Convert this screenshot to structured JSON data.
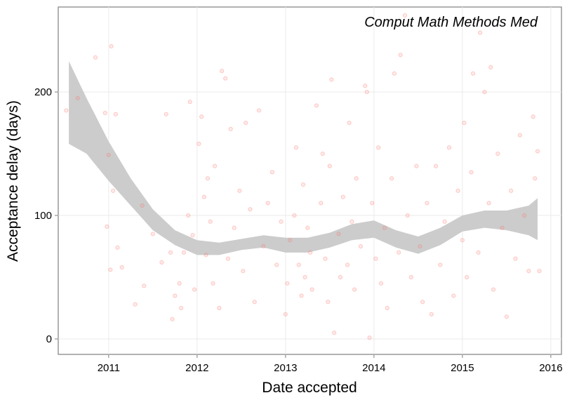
{
  "chart_data": {
    "type": "scatter",
    "annotation": "Comput Math Methods Med",
    "x_label": "Date accepted",
    "y_label": "Acceptance delay (days)",
    "xlim": [
      2010.43,
      2016.12
    ],
    "ylim": [
      -12.5,
      268.8
    ],
    "xticks": [
      2011,
      2012,
      2013,
      2014,
      2015,
      2016
    ],
    "yticks": [
      0,
      100,
      200
    ],
    "grid": true,
    "color": "#f8766d",
    "band_color": "#cccccc",
    "x": [
      2010.52,
      2010.65,
      2010.85,
      2010.96,
      2011.03,
      2011.08,
      2011.0,
      2010.98,
      2011.02,
      2011.05,
      2011.1,
      2011.15,
      2011.3,
      2011.38,
      2011.4,
      2011.5,
      2011.6,
      2011.65,
      2011.7,
      2011.72,
      2011.75,
      2011.8,
      2011.82,
      2011.85,
      2011.9,
      2011.92,
      2011.95,
      2011.97,
      2012.02,
      2012.05,
      2012.08,
      2012.1,
      2012.12,
      2012.15,
      2012.18,
      2012.2,
      2012.25,
      2012.28,
      2012.32,
      2012.35,
      2012.38,
      2012.42,
      2012.48,
      2012.52,
      2012.55,
      2012.6,
      2012.65,
      2012.7,
      2012.75,
      2012.8,
      2012.85,
      2012.9,
      2012.95,
      2013.0,
      2013.02,
      2013.05,
      2013.1,
      2013.12,
      2013.15,
      2013.18,
      2013.2,
      2013.22,
      2013.25,
      2013.28,
      2013.3,
      2013.35,
      2013.4,
      2013.42,
      2013.45,
      2013.48,
      2013.5,
      2013.52,
      2013.55,
      2013.6,
      2013.62,
      2013.65,
      2013.7,
      2013.72,
      2013.75,
      2013.78,
      2013.8,
      2013.85,
      2013.9,
      2013.92,
      2013.95,
      2013.98,
      2014.02,
      2014.05,
      2014.08,
      2014.12,
      2014.15,
      2014.2,
      2014.23,
      2014.28,
      2014.3,
      2014.35,
      2014.38,
      2014.42,
      2014.48,
      2014.52,
      2014.55,
      2014.6,
      2014.65,
      2014.7,
      2014.75,
      2014.8,
      2014.85,
      2014.9,
      2014.95,
      2015.0,
      2015.02,
      2015.05,
      2015.1,
      2015.12,
      2015.18,
      2015.2,
      2015.25,
      2015.3,
      2015.32,
      2015.35,
      2015.4,
      2015.45,
      2015.5,
      2015.55,
      2015.6,
      2015.65,
      2015.7,
      2015.75,
      2015.8,
      2015.82,
      2015.85,
      2015.87
    ],
    "values": [
      185,
      195,
      228,
      183,
      237,
      182,
      149,
      91,
      56,
      120,
      74,
      58,
      28,
      108,
      43,
      85,
      62,
      182,
      70,
      16,
      35,
      45,
      25,
      70,
      100,
      192,
      84,
      40,
      158,
      180,
      115,
      68,
      130,
      95,
      45,
      140,
      25,
      217,
      211,
      65,
      170,
      90,
      120,
      55,
      175,
      105,
      30,
      185,
      75,
      110,
      135,
      60,
      95,
      20,
      45,
      80,
      100,
      155,
      60,
      35,
      125,
      50,
      90,
      70,
      40,
      189,
      110,
      150,
      65,
      30,
      140,
      210,
      5,
      85,
      50,
      115,
      60,
      175,
      95,
      40,
      130,
      75,
      205,
      200,
      1,
      110,
      65,
      155,
      45,
      90,
      25,
      130,
      215,
      70,
      230,
      262,
      100,
      50,
      140,
      75,
      30,
      110,
      20,
      140,
      60,
      95,
      155,
      35,
      120,
      80,
      175,
      50,
      135,
      215,
      70,
      248,
      200,
      110,
      220,
      40,
      150,
      90,
      18,
      120,
      65,
      165,
      100,
      55,
      180,
      130,
      152,
      55
    ],
    "band": {
      "x": [
        2010.55,
        2010.75,
        2011.0,
        2011.25,
        2011.5,
        2011.75,
        2012.0,
        2012.25,
        2012.5,
        2012.75,
        2013.0,
        2013.25,
        2013.5,
        2013.75,
        2014.0,
        2014.25,
        2014.5,
        2014.75,
        2015.0,
        2015.25,
        2015.5,
        2015.75,
        2015.85
      ],
      "upper": [
        225,
        195,
        160,
        130,
        105,
        88,
        80,
        78,
        81,
        84,
        82,
        82,
        86,
        93,
        96,
        88,
        83,
        90,
        100,
        104,
        104,
        108,
        114
      ],
      "lower": [
        158,
        150,
        128,
        108,
        88,
        76,
        68,
        68,
        72,
        74,
        70,
        70,
        74,
        80,
        82,
        74,
        69,
        76,
        87,
        90,
        88,
        84,
        80
      ]
    }
  }
}
